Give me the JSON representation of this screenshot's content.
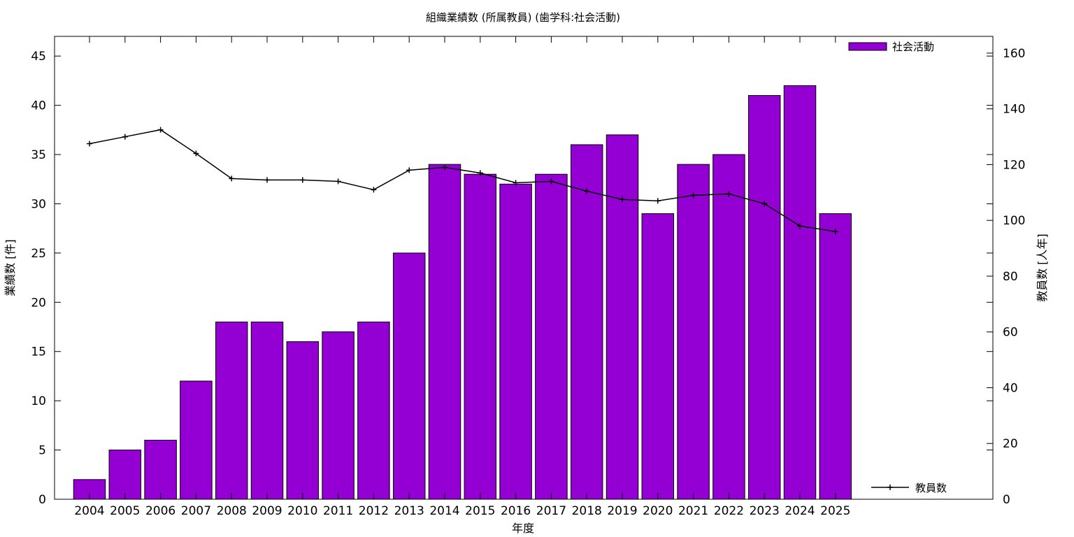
{
  "chart_data": {
    "type": "bar",
    "title": "組織業績数 (所属教員) (歯学科:社会活動)",
    "xlabel": "年度",
    "ylabel": "業績数 [件]",
    "y2label": "教員数 [人年]",
    "categories": [
      "2004",
      "2005",
      "2006",
      "2007",
      "2008",
      "2009",
      "2010",
      "2011",
      "2012",
      "2013",
      "2014",
      "2015",
      "2016",
      "2017",
      "2018",
      "2019",
      "2020",
      "2021",
      "2022",
      "2023",
      "2024",
      "2025"
    ],
    "ylim": [
      0,
      47
    ],
    "y2lim": [
      0,
      166
    ],
    "yticks": [
      0,
      5,
      10,
      15,
      20,
      25,
      30,
      35,
      40,
      45
    ],
    "y2ticks": [
      0,
      20,
      40,
      60,
      80,
      100,
      120,
      140,
      160
    ],
    "grid": false,
    "series": [
      {
        "name": "社会活動",
        "type": "bar",
        "axis": "left",
        "color": "#9400d3",
        "legend_position": "top-right",
        "values": [
          2,
          5,
          6,
          12,
          18,
          18,
          16,
          17,
          18,
          25,
          34,
          33,
          32,
          33,
          36,
          37,
          29,
          34,
          35,
          41,
          42,
          29
        ]
      },
      {
        "name": "教員数",
        "type": "line",
        "axis": "right",
        "color": "#000000",
        "marker": "plus",
        "legend_position": "bottom-right",
        "values": [
          127.5,
          130,
          132.5,
          124,
          115,
          114.5,
          114.5,
          114,
          111,
          118,
          119,
          117,
          113.5,
          114,
          110.5,
          107.5,
          107,
          109,
          109.5,
          106,
          98,
          96
        ]
      }
    ]
  }
}
